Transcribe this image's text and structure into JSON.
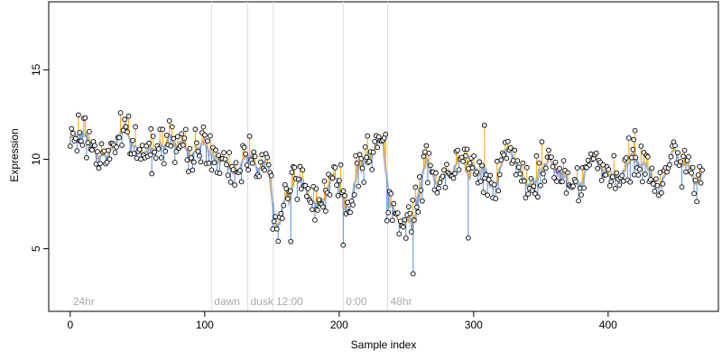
{
  "chart_data": {
    "type": "scatter",
    "title": "",
    "xlabel": "Sample index",
    "ylabel": "Expression",
    "xlim": [
      -16,
      482
    ],
    "ylim": [
      1.5,
      18.8
    ],
    "x_ticks": [
      0,
      100,
      200,
      300,
      400
    ],
    "y_ticks": [
      5,
      10,
      15
    ],
    "grid": false,
    "legend": "none",
    "colors": {
      "smooth_line": "#a8b7cc",
      "segment_up": "#ffa500",
      "segment_down": "#5b8ed6",
      "point_edge": "#000000",
      "point_fill": "#ffffff",
      "annotation_line": "#dddddd",
      "annotation_text": "#aaaaaa"
    },
    "annotations": [
      {
        "x": 0,
        "label": "24hr",
        "line": false
      },
      {
        "x": 105,
        "label": "dawn",
        "line": true
      },
      {
        "x": 132,
        "label": "dusk",
        "line": true
      },
      {
        "x": 151,
        "label": "12:00",
        "line": true
      },
      {
        "x": 203,
        "label": "0:00",
        "line": true
      },
      {
        "x": 236,
        "label": "48hr",
        "line": true
      }
    ],
    "series": [
      {
        "segments": [
          [
            0,
            100,
            10.8
          ],
          [
            100,
            150,
            9.8
          ],
          [
            150,
            158,
            6.6
          ],
          [
            158,
            200,
            8.4
          ],
          [
            200,
            212,
            8.0
          ],
          [
            212,
            235,
            10.4
          ],
          [
            235,
            245,
            7.0
          ],
          [
            245,
            262,
            7.2
          ],
          [
            262,
            330,
            9.4
          ],
          [
            330,
            470,
            9.3
          ]
        ],
        "jitter": 1.15,
        "n_points": 466,
        "outliers": [
          {
            "x": 255,
            "y": 3.6
          },
          {
            "x": 203,
            "y": 5.2
          },
          {
            "x": 296,
            "y": 5.6
          },
          {
            "x": 164,
            "y": 5.4
          },
          {
            "x": 7,
            "y": 11.5
          },
          {
            "x": 60,
            "y": 11.7
          },
          {
            "x": 221,
            "y": 11.3
          },
          {
            "x": 308,
            "y": 11.9
          },
          {
            "x": 420,
            "y": 11.6
          },
          {
            "x": 419,
            "y": 11.1
          },
          {
            "x": 183,
            "y": 7.2
          },
          {
            "x": 190,
            "y": 7.1
          }
        ]
      }
    ]
  }
}
